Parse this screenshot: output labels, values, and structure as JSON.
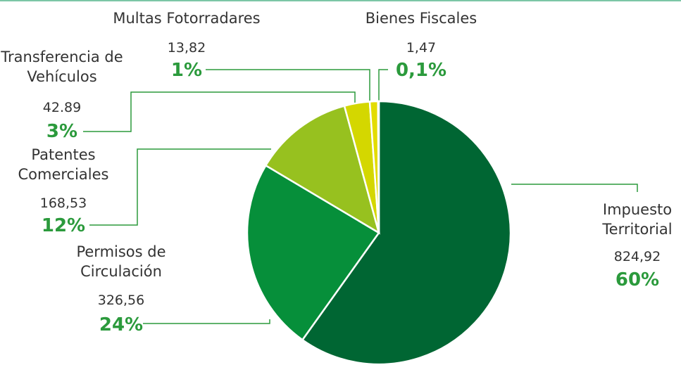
{
  "chart_data": {
    "type": "pie",
    "categories": [
      "Impuesto Territorial",
      "Permisos de Circulación",
      "Patentes Comerciales",
      "Transferencia de Vehículos",
      "Multas Fotorradares",
      "Bienes Fiscales"
    ],
    "values": [
      824.92,
      326.56,
      168.53,
      42.89,
      13.82,
      1.47
    ],
    "value_labels": [
      "824,92",
      "326,56",
      "168,53",
      "42.89",
      "13,82",
      "1,47"
    ],
    "percentages": [
      60,
      24,
      12,
      3,
      1,
      0.1
    ],
    "percentage_labels": [
      "60%",
      "24%",
      "12%",
      "3%",
      "1%",
      "0,1%"
    ],
    "colors": [
      "#006633",
      "#068f3a",
      "#97c11f",
      "#d4d700",
      "#e3dc00",
      "#ede300"
    ]
  }
}
